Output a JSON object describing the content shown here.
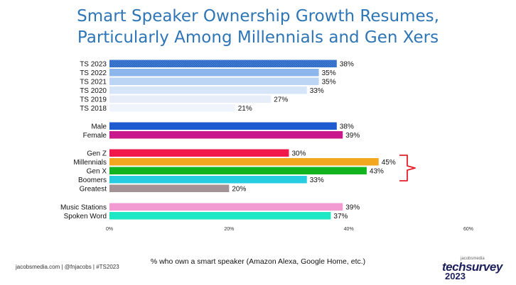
{
  "title_lines": [
    "Smart Speaker Ownership Growth Resumes,",
    "Particularly Among Millennials and Gen Xers"
  ],
  "footer": "jacobsmedia.com  |  @fnjacobs  |  #TS2023",
  "logo": {
    "small": "jacobsmedia",
    "big": "techsurvey",
    "year": "2023"
  },
  "colors": {
    "ts2023": "#2c69c4",
    "ts2022": "#8cb6ec",
    "ts2021": "#bcd5f5",
    "ts2020": "#d6e5f8",
    "ts2019": "#e7eef9",
    "ts2018": "#f0f4fb",
    "male": "#1f5bd0",
    "female": "#c8188b",
    "genz": "#f0184a",
    "millennials": "#f2a71e",
    "genx": "#12b520",
    "boomers": "#26cce0",
    "greatest": "#a39397",
    "music": "#f29bd2",
    "spoken": "#1ee8c3",
    "bracket": "#e41e2b",
    "title": "#2e75b6"
  },
  "chart_data": {
    "type": "bar",
    "orientation": "horizontal",
    "xlabel": "% who own a smart speaker (Amazon Alexa, Google Home, etc.)",
    "xlim": [
      0,
      60
    ],
    "xticks": [
      "0%",
      "20%",
      "40%",
      "60%"
    ],
    "grid": false,
    "groups": [
      {
        "categories": [
          "TS 2023",
          "TS 2022",
          "TS 2021",
          "TS 2020",
          "TS 2019",
          "TS 2018"
        ],
        "values": [
          38,
          35,
          35,
          33,
          27,
          21
        ],
        "labels": [
          "38%",
          "35%",
          "35%",
          "33%",
          "27%",
          "21%"
        ],
        "color_keys": [
          "ts2023",
          "ts2022",
          "ts2021",
          "ts2020",
          "ts2019",
          "ts2018"
        ]
      },
      {
        "categories": [
          "Male",
          "Female"
        ],
        "values": [
          38,
          39
        ],
        "labels": [
          "38%",
          "39%"
        ],
        "color_keys": [
          "male",
          "female"
        ]
      },
      {
        "categories": [
          "Gen Z",
          "Millennials",
          "Gen X",
          "Boomers",
          "Greatest"
        ],
        "values": [
          30,
          45,
          43,
          33,
          20
        ],
        "labels": [
          "30%",
          "45%",
          "43%",
          "33%",
          "20%"
        ],
        "color_keys": [
          "genz",
          "millennials",
          "genx",
          "boomers",
          "greatest"
        ]
      },
      {
        "categories": [
          "Music Stations",
          "Spoken Word"
        ],
        "values": [
          39,
          37
        ],
        "labels": [
          "39%",
          "37%"
        ],
        "color_keys": [
          "music",
          "spoken"
        ]
      }
    ]
  }
}
